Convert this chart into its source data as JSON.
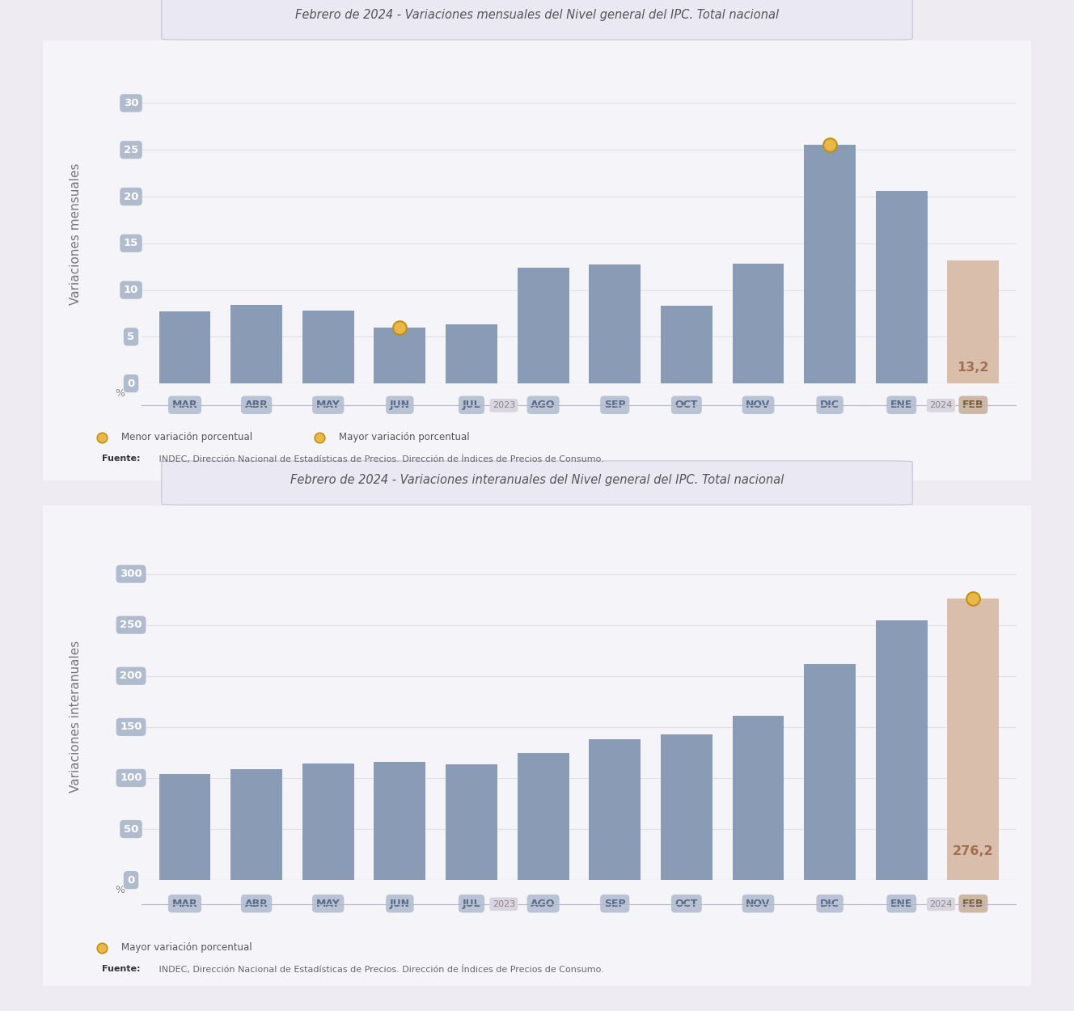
{
  "chart1": {
    "title_full": "Febrero de 2024 - Variaciones mensuales del Nivel general del IPC. Total nacional",
    "title_prefix": "Febrero de 2024 - ",
    "title_suffix": "Variaciones mensuales del Nivel general del IPC. Total nacional",
    "ylabel": "Variaciones mensuales",
    "categories": [
      "MAR",
      "ABR",
      "MAY",
      "JUN",
      "JUL",
      "AGO",
      "SEP",
      "OCT",
      "NOV",
      "DIC",
      "ENE",
      "FEB"
    ],
    "values": [
      7.7,
      8.4,
      7.8,
      6.0,
      6.3,
      12.4,
      12.7,
      8.3,
      12.8,
      25.5,
      20.6,
      13.2
    ],
    "bar_colors": [
      "#8a9bb5",
      "#8a9bb5",
      "#8a9bb5",
      "#8a9bb5",
      "#8a9bb5",
      "#8a9bb5",
      "#8a9bb5",
      "#8a9bb5",
      "#8a9bb5",
      "#8a9bb5",
      "#8a9bb5",
      "#d9bfab"
    ],
    "min_idx": 3,
    "max_idx": 9,
    "ylim": [
      0,
      32
    ],
    "yticks": [
      0,
      5,
      10,
      15,
      20,
      25,
      30
    ],
    "legend_min": "Menor variación porcentual",
    "legend_max": "Mayor variación porcentual",
    "source_bold": "Fuente:",
    "source_text": " INDEC, Dirección Nacional de Estadísticas de Precios. Dirección de Índices de Precios de Consumo."
  },
  "chart2": {
    "title_full": "Febrero de 2024 - Variaciones interanuales del Nivel general del IPC. Total nacional",
    "title_prefix": "Febrero de 2024 - ",
    "title_suffix": "Variaciones interanuales del Nivel general del IPC. Total nacional",
    "ylabel": "Variaciones interanuales",
    "categories": [
      "MAR",
      "ABR",
      "MAY",
      "JUN",
      "JUL",
      "AGO",
      "SEP",
      "OCT",
      "NOV",
      "DIC",
      "ENE",
      "FEB"
    ],
    "values": [
      104.3,
      108.8,
      114.2,
      115.6,
      113.4,
      124.4,
      138.3,
      142.7,
      160.9,
      211.4,
      254.2,
      276.2
    ],
    "bar_colors": [
      "#8a9bb5",
      "#8a9bb5",
      "#8a9bb5",
      "#8a9bb5",
      "#8a9bb5",
      "#8a9bb5",
      "#8a9bb5",
      "#8a9bb5",
      "#8a9bb5",
      "#8a9bb5",
      "#8a9bb5",
      "#d9bfab"
    ],
    "min_idx": null,
    "max_idx": 11,
    "ylim": [
      0,
      320
    ],
    "yticks": [
      0,
      50,
      100,
      150,
      200,
      250,
      300
    ],
    "legend_max": "Mayor variación porcentual",
    "source_bold": "Fuente:",
    "source_text": " INDEC, Dirección Nacional de Estadísticas de Precios. Dirección de Índices de Precios de Consumo."
  },
  "outer_bg": "#eeecf2",
  "inner_bg": "#f5f4f8",
  "dot_color": "#e8b84b",
  "dot_edge_color": "#c49010",
  "bar_color_main": "#8a9bb5",
  "bar_color_feb": "#d9bfab",
  "cat_pill_color": "#b8c4d5",
  "cat_pill_color_feb": "#cdb8a5",
  "cat_text_color": "#5a6a88",
  "cat_text_color_feb": "#7a5c40",
  "ytick_pill_color": "#b0bcce",
  "ytick_text_color": "#ffffff",
  "grid_color": "#e2e0ea",
  "axis_line_color": "#c8c5d5",
  "year_pill_color": "#d8d5e0",
  "year_text_color": "#888888",
  "value_text_color": "#8a9bb5",
  "value_text_color_feb": "#a07050",
  "ylabel_color": "#777777",
  "title_color": "#555555",
  "legend_dot_size": 9,
  "source_bold_color": "#333333",
  "source_text_color": "#666666"
}
